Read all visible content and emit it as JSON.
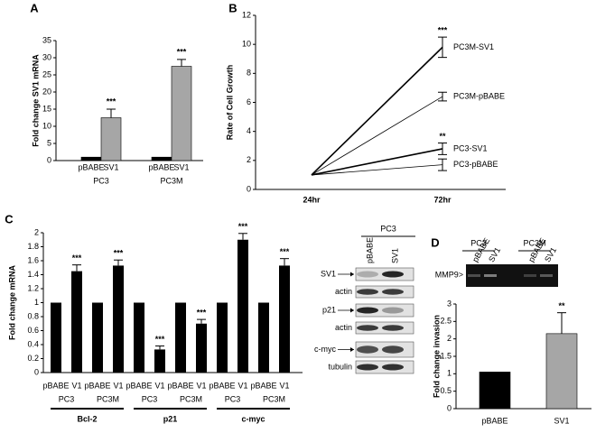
{
  "chart_data": [
    {
      "type": "grouped_bar",
      "panel_label": "A",
      "y_label": "Fold change SV1 mRNA",
      "categories": [
        "PC3",
        "PC3M"
      ],
      "series": [
        {
          "name": "pBABE",
          "color": "#000000",
          "values": [
            1,
            1
          ]
        },
        {
          "name": "SV1",
          "color": "#a6a6a6",
          "values": [
            12.5,
            27.5
          ],
          "errors": [
            2.5,
            2
          ],
          "annotations": [
            "***",
            "***"
          ]
        }
      ],
      "ylim": [
        0,
        35
      ],
      "yticks": [
        0,
        5,
        10,
        15,
        20,
        25,
        30,
        35
      ]
    },
    {
      "type": "line",
      "panel_label": "B",
      "y_label": "Rate of Cell Growth",
      "categories": [
        "24hr",
        "72hr"
      ],
      "series": [
        {
          "name": "PC3M-SV1",
          "color": "#000000",
          "width": 1.6,
          "values": [
            1,
            9.8
          ],
          "errors": [
            null,
            0.7
          ],
          "annotations": [
            null,
            "***"
          ]
        },
        {
          "name": "PC3M-pBABE",
          "color": "#000000",
          "width": 0.8,
          "values": [
            1,
            6.4
          ],
          "errors": [
            null,
            0.3
          ],
          "annotations": [
            null,
            null
          ]
        },
        {
          "name": "PC3-SV1",
          "color": "#000000",
          "width": 1.6,
          "values": [
            1,
            2.8
          ],
          "errors": [
            null,
            0.4
          ],
          "annotations": [
            null,
            "**"
          ]
        },
        {
          "name": "PC3-pBABE",
          "color": "#000000",
          "width": 0.8,
          "values": [
            1,
            1.7
          ],
          "errors": [
            null,
            0.4
          ],
          "annotations": [
            null,
            null
          ]
        }
      ],
      "ylim": [
        0,
        12
      ],
      "yticks": [
        0,
        2,
        4,
        6,
        8,
        10,
        12
      ]
    },
    {
      "type": "bar",
      "panel_label": "C",
      "y_label": "Fold change mRNA",
      "categories": [
        "pBABE",
        "V1",
        "pBABE",
        "V1",
        "pBABE",
        "V1",
        "pBABE",
        "V1",
        "pBABE",
        "V1",
        "pBABE",
        "V1"
      ],
      "cell_lines": [
        "PC3",
        "PC3M",
        "PC3",
        "PC3M",
        "PC3",
        "PC3M"
      ],
      "genes": [
        "Bcl-2",
        "p21",
        "c-myc"
      ],
      "values": [
        1,
        1.45,
        1,
        1.53,
        1,
        0.33,
        1,
        0.7,
        1,
        1.9,
        1,
        1.53
      ],
      "errors": [
        null,
        0.09,
        null,
        0.08,
        null,
        0.05,
        null,
        0.06,
        null,
        0.09,
        null,
        0.1
      ],
      "annotations": [
        null,
        "***",
        null,
        "***",
        null,
        "***",
        null,
        "***",
        null,
        "***",
        null,
        "***"
      ],
      "color": "#000000",
      "ylim": [
        0,
        2
      ],
      "yticks": [
        0,
        0.2,
        0.4,
        0.6,
        0.8,
        1,
        1.2,
        1.4,
        1.6,
        1.8,
        2
      ]
    },
    {
      "type": "blot",
      "header": "PC3",
      "lanes": [
        "pBABE",
        "SV1"
      ],
      "rows": [
        "SV1",
        "actin",
        "p21",
        "actin",
        "c-myc",
        "tubulin"
      ]
    },
    {
      "type": "bar",
      "panel_label": "D",
      "y_label": "Fold change invasion",
      "categories": [
        "pBABE",
        "SV1"
      ],
      "values": [
        1.05,
        2.15
      ],
      "errors": [
        null,
        0.6
      ],
      "annotations": [
        null,
        "**"
      ],
      "colors": [
        "#000000",
        "#a6a6a6"
      ],
      "ylim": [
        0,
        3
      ],
      "yticks": [
        0,
        0.5,
        1,
        1.5,
        2,
        2.5,
        3
      ],
      "blot": {
        "groups": [
          "PC3",
          "PC3M"
        ],
        "lanes": [
          "pBABE",
          "SV1",
          "pBABE",
          "SV1"
        ],
        "band_label": "MMP9>"
      }
    }
  ]
}
